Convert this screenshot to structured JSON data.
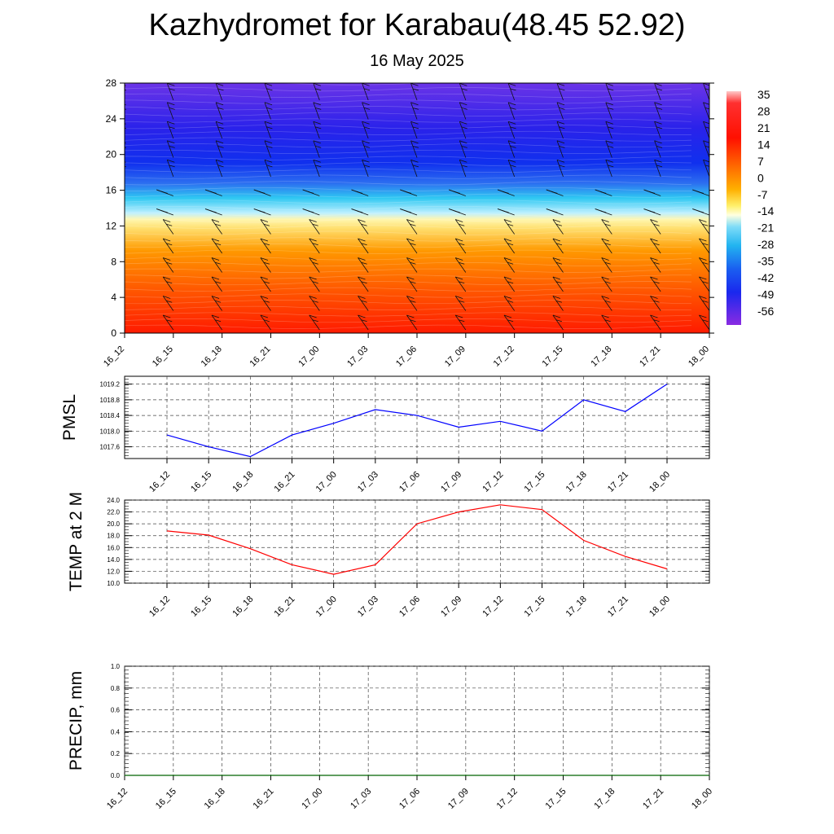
{
  "title": "Kazhydromet for Karabau(48.45 52.92)",
  "subtitle": "16 May 2025",
  "chart_data": [
    {
      "type": "heatmap",
      "ylim": [
        0,
        28
      ],
      "yticks": [
        "0",
        "4",
        "8",
        "12",
        "16",
        "20",
        "24",
        "28"
      ],
      "xticks": [
        "16_12",
        "16_15",
        "16_18",
        "16_21",
        "17_00",
        "17_03",
        "17_06",
        "17_09",
        "17_12",
        "17_15",
        "17_18",
        "17_21",
        "18_00"
      ],
      "colorbar": [
        "35",
        "28",
        "21",
        "14",
        "7",
        "0",
        "-7",
        "-14",
        "-21",
        "-28",
        "-35",
        "-42",
        "-49",
        "-56"
      ],
      "vmin": -63,
      "vmax": 40,
      "colors": {
        "warm": "#ff1a00",
        "orange": "#ff9900",
        "yellow": "#fff17a",
        "cyan": "#2fc8f2",
        "blue": "#1030ee",
        "purple": "#8a2be2"
      }
    },
    {
      "type": "line",
      "ylabel": "PMSL",
      "color": "#0000ff",
      "ylim": [
        1017.3,
        1019.4
      ],
      "yticks": [
        "1017.6",
        "1018.0",
        "1018.4",
        "1018.8",
        "1019.2"
      ],
      "categories": [
        "16_12",
        "16_15",
        "16_18",
        "16_21",
        "17_00",
        "17_03",
        "17_06",
        "17_09",
        "17_12",
        "17_15",
        "17_18",
        "17_21",
        "18_00"
      ],
      "values": [
        1017.9,
        1017.6,
        1017.35,
        1017.9,
        1018.2,
        1018.55,
        1018.4,
        1018.1,
        1018.25,
        1018.0,
        1018.8,
        1018.5,
        1019.2
      ]
    },
    {
      "type": "line",
      "ylabel": "TEMP at 2 M",
      "color": "#ff0000",
      "ylim": [
        10.0,
        24.0
      ],
      "yticks": [
        "10.0",
        "12.0",
        "14.0",
        "16.0",
        "18.0",
        "20.0",
        "22.0",
        "24.0"
      ],
      "categories": [
        "16_12",
        "16_15",
        "16_18",
        "16_21",
        "17_00",
        "17_03",
        "17_06",
        "17_09",
        "17_12",
        "17_15",
        "17_18",
        "17_21",
        "18_00"
      ],
      "values": [
        18.8,
        18.1,
        15.8,
        13.1,
        11.5,
        13.1,
        20.0,
        22.0,
        23.2,
        22.4,
        17.2,
        14.5,
        12.4
      ]
    },
    {
      "type": "line",
      "ylabel": "PRECIP, mm",
      "color": "#006400",
      "ylim": [
        0.0,
        1.0
      ],
      "yticks": [
        "0.0",
        "0.2",
        "0.4",
        "0.6",
        "0.8",
        "1.0"
      ],
      "categories": [
        "16_12",
        "16_15",
        "16_18",
        "16_21",
        "17_00",
        "17_03",
        "17_06",
        "17_09",
        "17_12",
        "17_15",
        "17_18",
        "17_21",
        "18_00"
      ],
      "values": [
        0,
        0,
        0,
        0,
        0,
        0,
        0,
        0,
        0,
        0,
        0,
        0,
        0
      ]
    }
  ]
}
